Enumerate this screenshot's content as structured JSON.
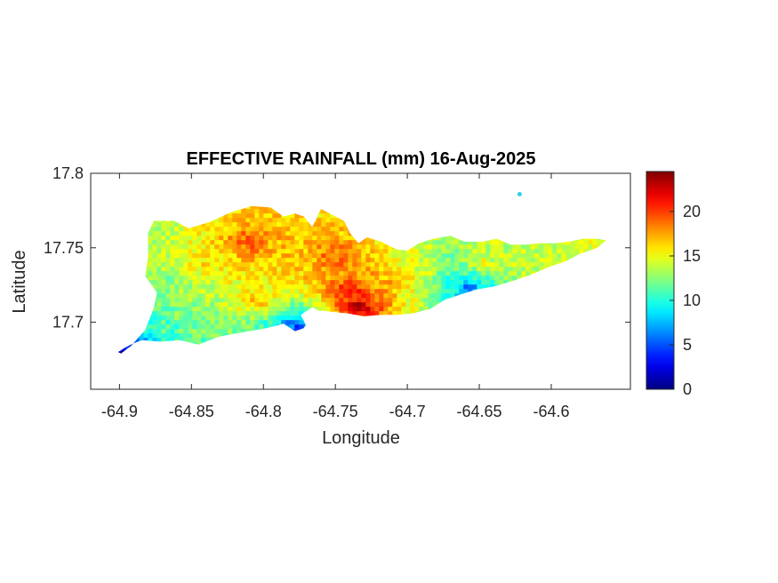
{
  "chart_data": {
    "type": "heatmap",
    "title": "EFFECTIVE RAINFALL (mm) 16-Aug-2025",
    "xlabel": "Longitude",
    "ylabel": "Latitude",
    "xlim": [
      -64.92,
      -64.545
    ],
    "ylim": [
      17.655,
      17.8
    ],
    "xticks": [
      -64.9,
      -64.85,
      -64.8,
      -64.75,
      -64.7,
      -64.65,
      -64.6
    ],
    "xtick_labels": [
      "-64.9",
      "-64.85",
      "-64.8",
      "-64.75",
      "-64.7",
      "-64.65",
      "-64.6"
    ],
    "yticks": [
      17.7,
      17.75,
      17.8
    ],
    "ytick_labels": [
      "17.7",
      "17.75",
      "17.8"
    ],
    "colorbar": {
      "colormap": "jet",
      "range": [
        0,
        24.5
      ],
      "ticks": [
        0,
        5,
        10,
        15,
        20
      ],
      "tick_labels": [
        "0",
        "5",
        "10",
        "15",
        "20"
      ]
    },
    "grid": false,
    "region_outline": [
      [
        -64.88,
        17.76
      ],
      [
        -64.876,
        17.768
      ],
      [
        -64.862,
        17.768
      ],
      [
        -64.852,
        17.763
      ],
      [
        -64.838,
        17.767
      ],
      [
        -64.822,
        17.774
      ],
      [
        -64.808,
        17.778
      ],
      [
        -64.795,
        17.777
      ],
      [
        -64.786,
        17.771
      ],
      [
        -64.778,
        17.773
      ],
      [
        -64.772,
        17.771
      ],
      [
        -64.766,
        17.764
      ],
      [
        -64.76,
        17.776
      ],
      [
        -64.752,
        17.772
      ],
      [
        -64.744,
        17.768
      ],
      [
        -64.74,
        17.76
      ],
      [
        -64.734,
        17.753
      ],
      [
        -64.728,
        17.757
      ],
      [
        -64.718,
        17.754
      ],
      [
        -64.708,
        17.749
      ],
      [
        -64.7,
        17.748
      ],
      [
        -64.692,
        17.753
      ],
      [
        -64.682,
        17.756
      ],
      [
        -64.67,
        17.758
      ],
      [
        -64.66,
        17.754
      ],
      [
        -64.648,
        17.754
      ],
      [
        -64.638,
        17.756
      ],
      [
        -64.628,
        17.752
      ],
      [
        -64.618,
        17.752
      ],
      [
        -64.608,
        17.753
      ],
      [
        -64.598,
        17.753
      ],
      [
        -64.588,
        17.754
      ],
      [
        -64.578,
        17.756
      ],
      [
        -64.568,
        17.756
      ],
      [
        -64.562,
        17.755
      ],
      [
        -64.568,
        17.75
      ],
      [
        -64.58,
        17.746
      ],
      [
        -64.59,
        17.741
      ],
      [
        -64.602,
        17.737
      ],
      [
        -64.614,
        17.732
      ],
      [
        -64.626,
        17.728
      ],
      [
        -64.64,
        17.724
      ],
      [
        -64.652,
        17.722
      ],
      [
        -64.662,
        17.719
      ],
      [
        -64.674,
        17.715
      ],
      [
        -64.684,
        17.709
      ],
      [
        -64.696,
        17.706
      ],
      [
        -64.708,
        17.705
      ],
      [
        -64.718,
        17.705
      ],
      [
        -64.73,
        17.704
      ],
      [
        -64.742,
        17.706
      ],
      [
        -64.752,
        17.707
      ],
      [
        -64.76,
        17.708
      ],
      [
        -64.768,
        17.702
      ],
      [
        -64.772,
        17.696
      ],
      [
        -64.778,
        17.694
      ],
      [
        -64.786,
        17.699
      ],
      [
        -64.798,
        17.696
      ],
      [
        -64.81,
        17.694
      ],
      [
        -64.822,
        17.692
      ],
      [
        -64.832,
        17.69
      ],
      [
        -64.845,
        17.685
      ],
      [
        -64.858,
        17.688
      ],
      [
        -64.872,
        17.687
      ],
      [
        -64.884,
        17.688
      ],
      [
        -64.89,
        17.686
      ],
      [
        -64.896,
        17.683
      ],
      [
        -64.901,
        17.68
      ],
      [
        -64.899,
        17.679
      ],
      [
        -64.892,
        17.684
      ],
      [
        -64.882,
        17.695
      ],
      [
        -64.876,
        17.71
      ],
      [
        -64.874,
        17.72
      ],
      [
        -64.882,
        17.731
      ],
      [
        -64.88,
        17.745
      ]
    ],
    "pond_outline": [
      [
        -64.774,
        17.705
      ],
      [
        -64.766,
        17.71
      ],
      [
        -64.758,
        17.706
      ],
      [
        -64.762,
        17.699
      ],
      [
        -64.77,
        17.697
      ]
    ],
    "islet": [
      -64.622,
      17.786
    ],
    "rainfall_zones": [
      {
        "lon": -64.884,
        "lat": 17.76,
        "r": 0.016,
        "value": 13.5
      },
      {
        "lon": -64.868,
        "lat": 17.73,
        "r": 0.018,
        "value": 12.5
      },
      {
        "lon": -64.86,
        "lat": 17.7,
        "r": 0.016,
        "value": 13.0
      },
      {
        "lon": -64.84,
        "lat": 17.74,
        "r": 0.02,
        "value": 16.0
      },
      {
        "lon": -64.812,
        "lat": 17.755,
        "r": 0.022,
        "value": 19.5
      },
      {
        "lon": -64.805,
        "lat": 17.715,
        "r": 0.02,
        "value": 17.0
      },
      {
        "lon": -64.78,
        "lat": 17.745,
        "r": 0.018,
        "value": 16.5
      },
      {
        "lon": -64.752,
        "lat": 17.745,
        "r": 0.018,
        "value": 19.5
      },
      {
        "lon": -64.742,
        "lat": 17.722,
        "r": 0.016,
        "value": 21.0
      },
      {
        "lon": -64.735,
        "lat": 17.711,
        "r": 0.01,
        "value": 24.0
      },
      {
        "lon": -64.71,
        "lat": 17.73,
        "r": 0.018,
        "value": 17.5
      },
      {
        "lon": -64.69,
        "lat": 17.735,
        "r": 0.014,
        "value": 14.5
      },
      {
        "lon": -64.672,
        "lat": 17.738,
        "r": 0.012,
        "value": 11.0
      },
      {
        "lon": -64.65,
        "lat": 17.742,
        "r": 0.016,
        "value": 15.0
      },
      {
        "lon": -64.625,
        "lat": 17.742,
        "r": 0.016,
        "value": 14.5
      },
      {
        "lon": -64.6,
        "lat": 17.745,
        "r": 0.014,
        "value": 14.0
      },
      {
        "lon": -64.575,
        "lat": 17.752,
        "r": 0.01,
        "value": 14.5
      },
      {
        "lon": -64.78,
        "lat": 17.701,
        "r": 0.005,
        "value": 7.0
      },
      {
        "lon": -64.777,
        "lat": 17.697,
        "r": 0.003,
        "value": 4.0
      },
      {
        "lon": -64.659,
        "lat": 17.725,
        "r": 0.004,
        "value": 5.0
      },
      {
        "lon": -64.667,
        "lat": 17.725,
        "r": 0.004,
        "value": 9.0
      },
      {
        "lon": -64.893,
        "lat": 17.684,
        "r": 0.004,
        "value": 5.5
      },
      {
        "lon": -64.899,
        "lat": 17.68,
        "r": 0.003,
        "value": 0.5
      },
      {
        "lon": -64.866,
        "lat": 17.698,
        "r": 0.006,
        "value": 11.0
      }
    ]
  }
}
